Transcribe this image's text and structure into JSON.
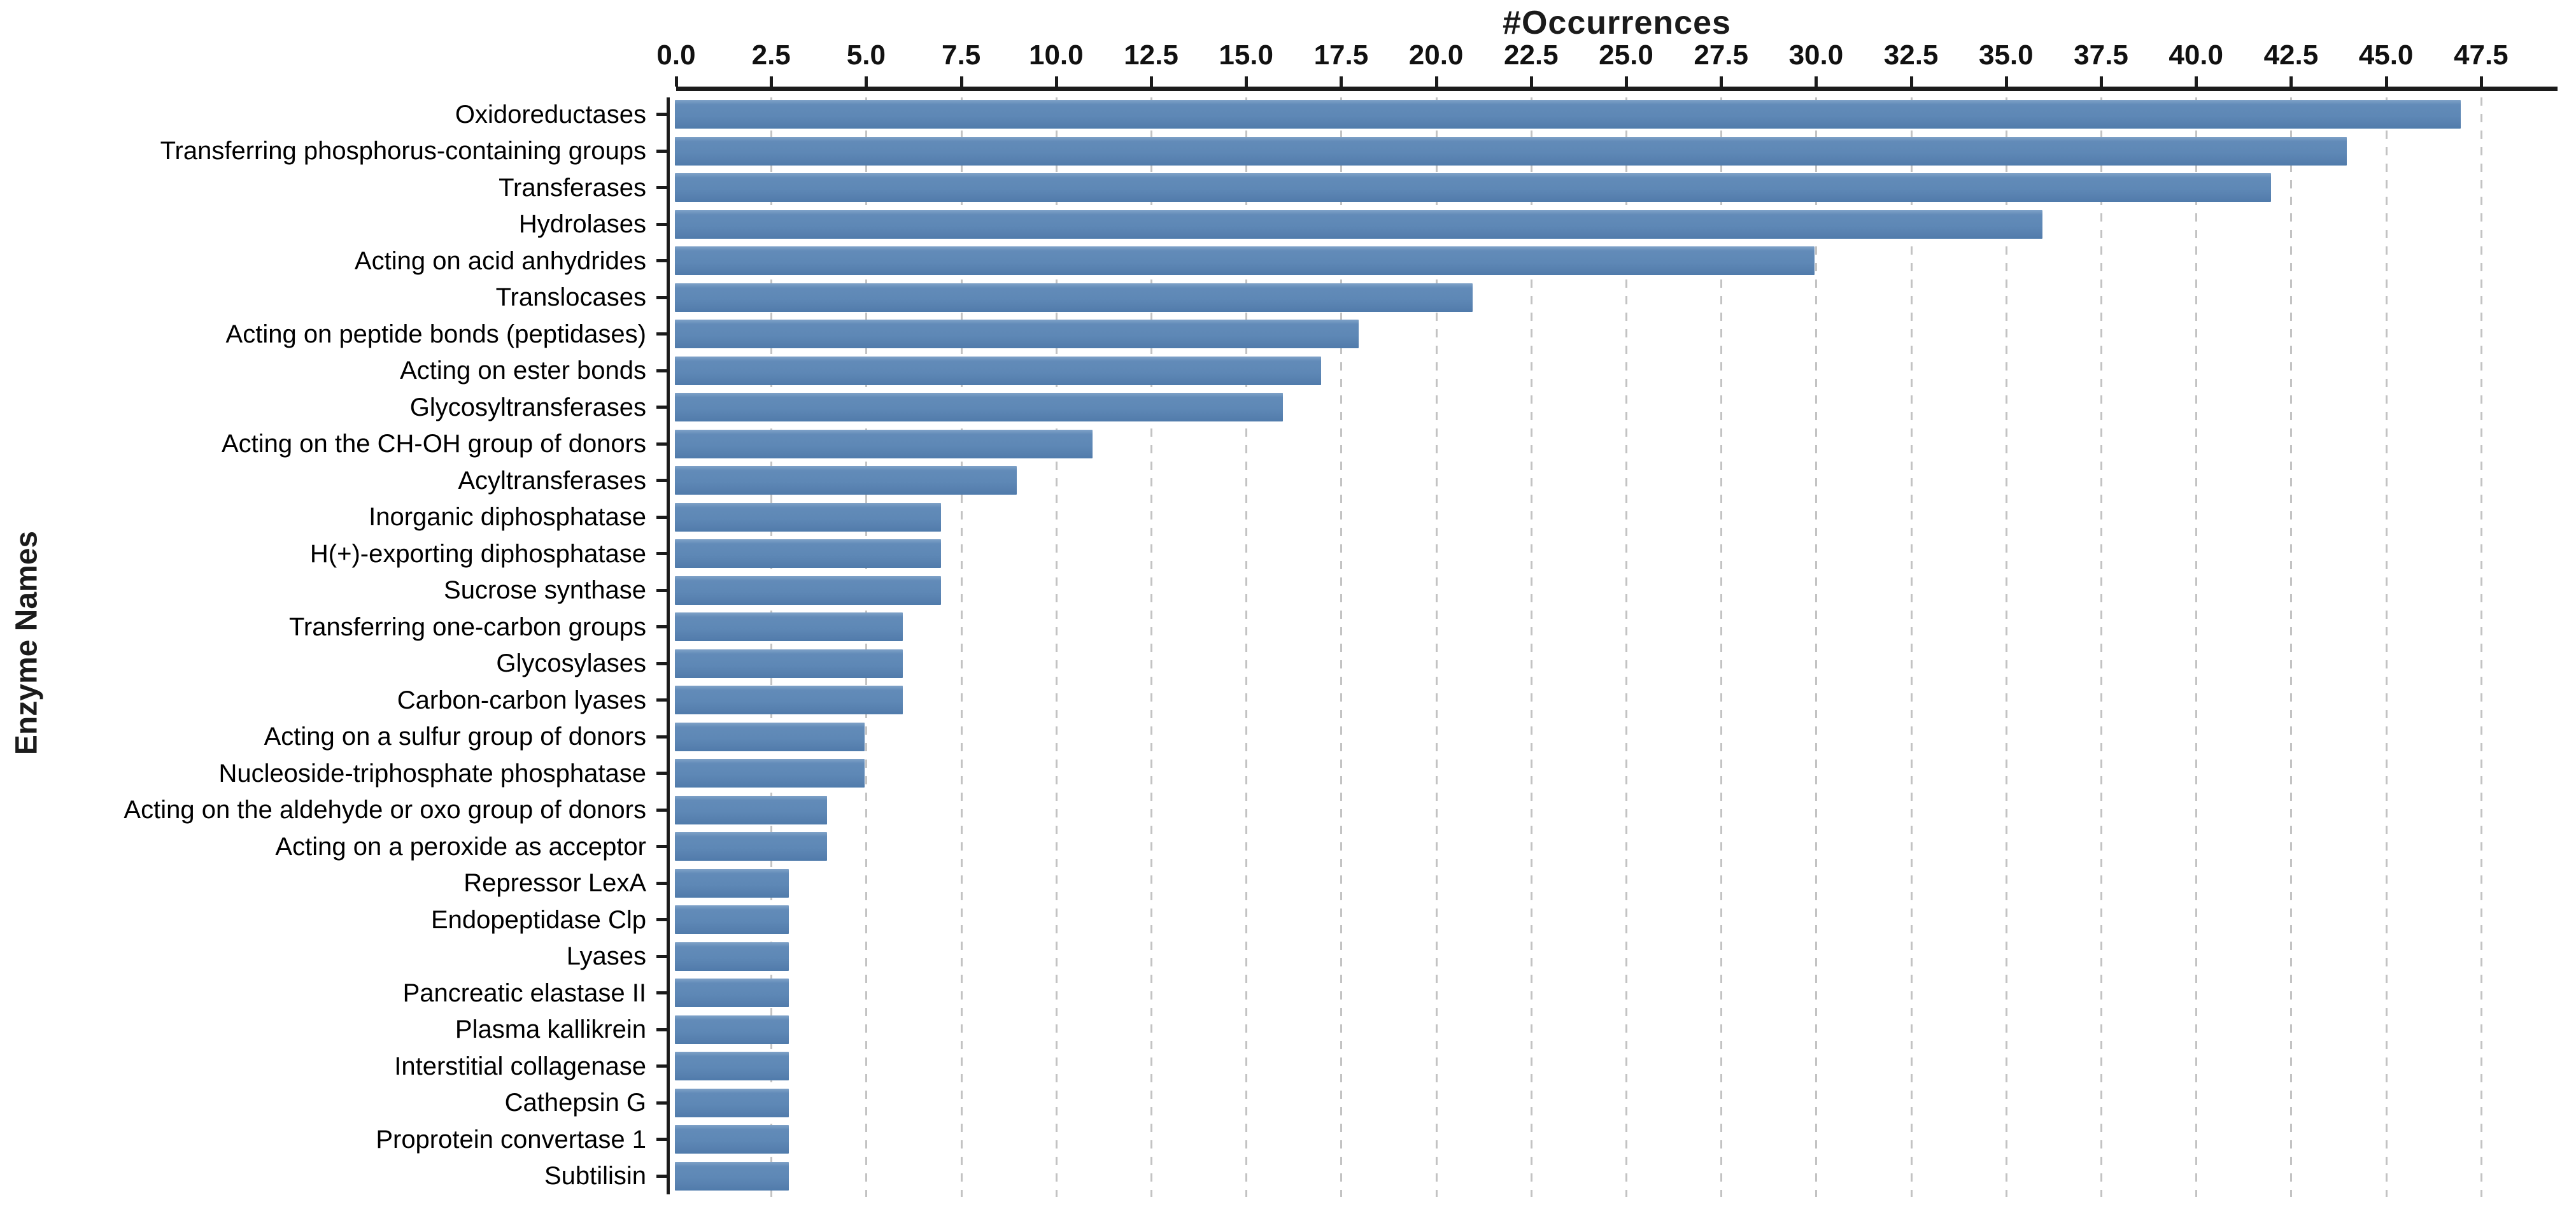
{
  "chart_data": {
    "type": "bar",
    "orientation": "horizontal",
    "title": "#Occurrences",
    "xlabel": "#Occurrences",
    "ylabel": "Enzyme Names",
    "x_tick_labels": [
      "0.0",
      "2.5",
      "5.0",
      "7.5",
      "10.0",
      "12.5",
      "15.0",
      "17.5",
      "20.0",
      "22.5",
      "25.0",
      "27.5",
      "30.0",
      "32.5",
      "35.0",
      "37.5",
      "40.0",
      "42.5",
      "45.0",
      "47.5"
    ],
    "x_tick_values": [
      0,
      2.5,
      5,
      7.5,
      10,
      12.5,
      15,
      17.5,
      20,
      22.5,
      25,
      27.5,
      30,
      32.5,
      35,
      37.5,
      40,
      42.5,
      45,
      47.5
    ],
    "xlim": [
      0,
      49.5
    ],
    "grid": "vertical-dashed",
    "legend_position": "none",
    "categories": [
      "Oxidoreductases",
      "Transferring phosphorus-containing groups",
      "Transferases",
      "Hydrolases",
      "Acting on acid anhydrides",
      "Translocases",
      "Acting on peptide bonds (peptidases)",
      "Acting on ester bonds",
      "Glycosyltransferases",
      "Acting on the CH-OH group of donors",
      "Acyltransferases",
      "Inorganic diphosphatase",
      "H(+)-exporting diphosphatase",
      "Sucrose synthase",
      "Transferring one-carbon groups",
      "Glycosylases",
      "Carbon-carbon lyases",
      "Acting on a sulfur group of donors",
      "Nucleoside-triphosphate phosphatase",
      "Acting on the aldehyde or oxo group of donors",
      "Acting on a peroxide as acceptor",
      "Repressor LexA",
      "Endopeptidase Clp",
      "Lyases",
      "Pancreatic elastase II",
      "Plasma kallikrein",
      "Interstitial collagenase",
      "Cathepsin G",
      "Proprotein convertase 1",
      "Subtilisin"
    ],
    "values": [
      47,
      44,
      42,
      36,
      30,
      21,
      18,
      17,
      16,
      11,
      9,
      7,
      7,
      7,
      6,
      6,
      6,
      5,
      5,
      4,
      4,
      3,
      3,
      3,
      3,
      3,
      3,
      3,
      3,
      3
    ],
    "colors": {
      "bar": "#5E88B6",
      "bar_highlight": "#7FA2C8",
      "bar_shadow": "#4F7BAB",
      "axis": "#1B1B1B",
      "grid": "#C3C3C3",
      "text": "#000000",
      "background": "#FFFFFF"
    }
  }
}
